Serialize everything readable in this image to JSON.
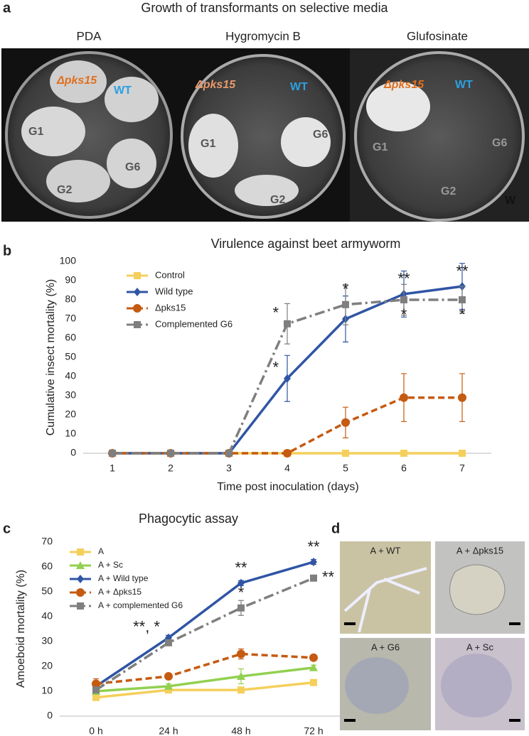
{
  "panel_letters": [
    "a",
    "b",
    "c",
    "d"
  ],
  "plates_panel": {
    "title": "Growth of transformants on selective media",
    "plates": [
      {
        "medium": "PDA",
        "labels": [
          "Δpks15",
          "WT",
          "G1",
          "G2",
          "G6"
        ]
      },
      {
        "medium": "Hygromycin B",
        "labels": [
          "Δpks15",
          "WT",
          "G1",
          "G6",
          "G2"
        ]
      },
      {
        "medium": "Glufosinate",
        "labels": [
          "Δpks15",
          "WT",
          "G1",
          "G6",
          "G2",
          "W"
        ]
      }
    ]
  },
  "micrographs": [
    "A + WT",
    "A + Δpks15",
    "A + G6",
    "A + Sc"
  ],
  "chart_data": [
    {
      "type": "line",
      "title": "Virulence against beet armyworm",
      "x_label": "Time post inoculation (days)",
      "y_label": "Cumulative insect mortality (%)",
      "categories": [
        "1",
        "2",
        "3",
        "4",
        "5",
        "6",
        "7"
      ],
      "ylim": [
        0,
        100
      ],
      "yticks": [
        0,
        10,
        20,
        30,
        40,
        50,
        60,
        70,
        80,
        90,
        100
      ],
      "series": [
        {
          "name": "Control",
          "color": "#f5cf5b",
          "marker": "square",
          "dash": "solid",
          "values": [
            0,
            0,
            0,
            0,
            0,
            0,
            0
          ]
        },
        {
          "name": "Wild type",
          "color": "#2f55a4",
          "marker": "diamond",
          "dash": "solid",
          "values": [
            0,
            0,
            0,
            39,
            70,
            83,
            87
          ],
          "errors": [
            0,
            0,
            0,
            12,
            12,
            12,
            12
          ]
        },
        {
          "name": "Δpks15",
          "color": "#c55a11",
          "marker": "circle",
          "dash": "dash",
          "values": [
            0,
            0,
            0,
            0,
            16,
            29,
            29
          ],
          "errors": [
            0,
            0,
            0,
            0,
            8,
            12.5,
            12.5
          ]
        },
        {
          "name": "Complemented G6",
          "color": "#7f7f7f",
          "marker": "square",
          "dash": "dashdot",
          "values": [
            0,
            0,
            0,
            67.5,
            77.5,
            80,
            80
          ],
          "errors": [
            0,
            0,
            0,
            10.5,
            10.5,
            8,
            7
          ]
        }
      ],
      "annotations": [
        {
          "text": "*",
          "series": 1,
          "point": 3,
          "position": "left"
        },
        {
          "text": "**",
          "series": 1,
          "point": 5,
          "position": "above"
        },
        {
          "text": "**",
          "series": 1,
          "point": 6,
          "position": "above"
        },
        {
          "text": "*",
          "series": 3,
          "point": 3,
          "position": "left"
        },
        {
          "text": "*",
          "series": 3,
          "point": 4,
          "position": "above"
        },
        {
          "text": "*",
          "series": 3,
          "point": 5,
          "position": "below"
        },
        {
          "text": "*",
          "series": 3,
          "point": 6,
          "position": "below"
        }
      ]
    },
    {
      "type": "line",
      "title": "Phagocytic assay",
      "y_label": "Amoeboid mortality (%)",
      "categories": [
        "0 h",
        "24 h",
        "48 h",
        "72 h"
      ],
      "ylim": [
        0,
        70
      ],
      "yticks": [
        0,
        10,
        20,
        30,
        40,
        50,
        60,
        70
      ],
      "series": [
        {
          "name": "A",
          "color": "#f5cf5b",
          "marker": "square",
          "dash": "solid",
          "values": [
            7.5,
            10.5,
            10.5,
            13.5
          ],
          "errors": [
            1,
            1,
            1,
            1
          ]
        },
        {
          "name": "A + Sc",
          "color": "#92d050",
          "marker": "triangle",
          "dash": "solid",
          "values": [
            10,
            12,
            16,
            19.5
          ],
          "errors": [
            1,
            1,
            3,
            1
          ]
        },
        {
          "name": "A + Wild type",
          "color": "#2f55a4",
          "marker": "diamond",
          "dash": "solid",
          "values": [
            12,
            31.5,
            53.5,
            62
          ],
          "errors": [
            1,
            1,
            1,
            1
          ]
        },
        {
          "name": "A + Δpks15",
          "color": "#c55a11",
          "marker": "circle",
          "dash": "dash",
          "values": [
            13,
            16,
            25,
            23.5
          ],
          "errors": [
            2,
            1,
            2,
            1
          ]
        },
        {
          "name": "A + complemented G6",
          "color": "#7f7f7f",
          "marker": "square",
          "dash": "dashdot",
          "values": [
            10.5,
            29.5,
            43.5,
            55.5
          ],
          "errors": [
            1,
            1,
            3,
            1
          ]
        }
      ],
      "annotations": [
        {
          "text": "**, *",
          "series": 2,
          "point": 1,
          "position": "left"
        },
        {
          "text": "**",
          "series": 2,
          "point": 2,
          "position": "above"
        },
        {
          "text": "**",
          "series": 2,
          "point": 3,
          "position": "above"
        },
        {
          "text": "*",
          "series": 4,
          "point": 2,
          "position": "above"
        },
        {
          "text": "**",
          "series": 4,
          "point": 3,
          "position": "right"
        }
      ]
    }
  ]
}
